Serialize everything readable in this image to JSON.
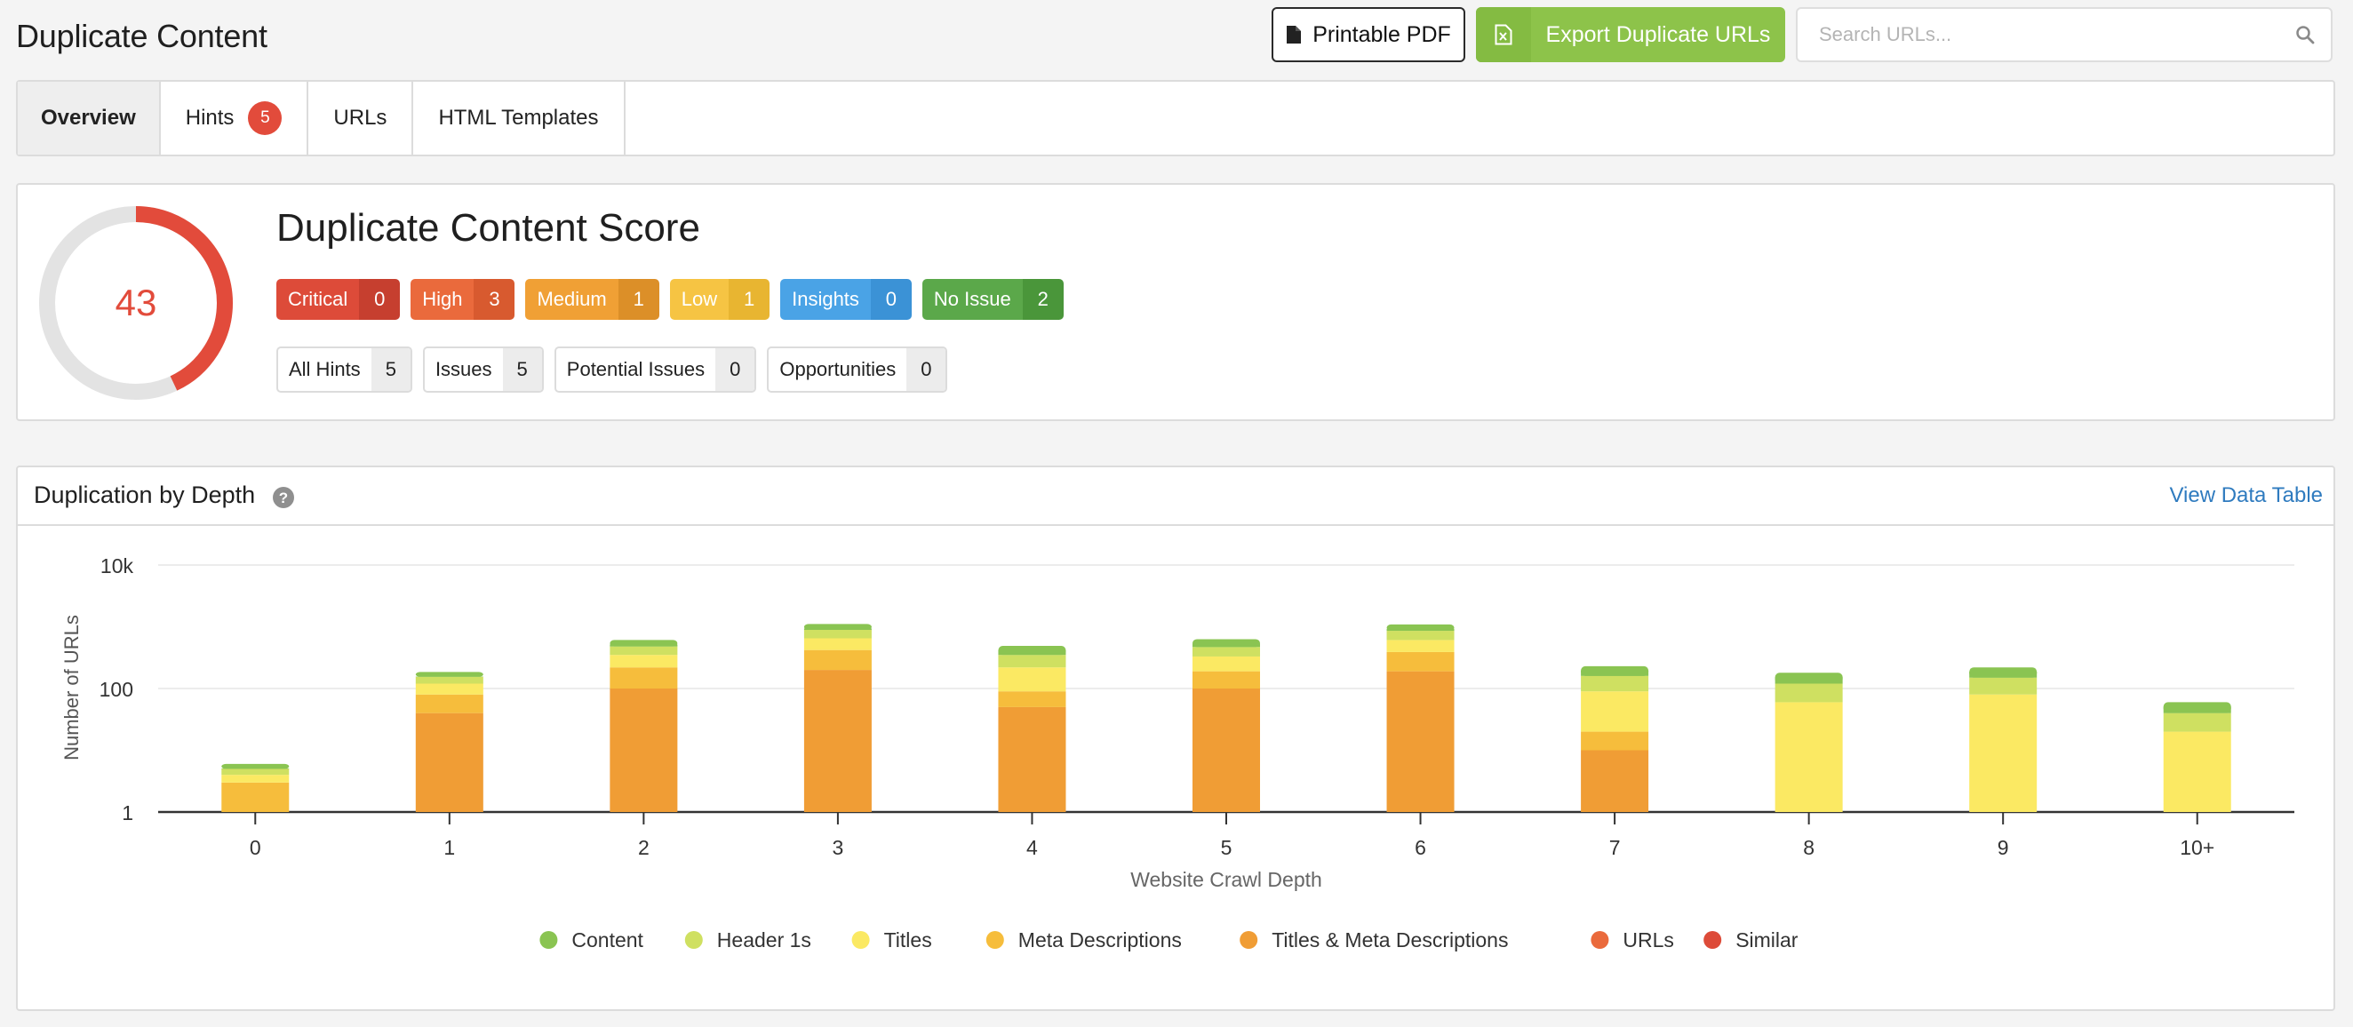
{
  "header": {
    "title": "Duplicate Content",
    "pdf_label": "Printable PDF",
    "pdf_icon": "file-icon",
    "export_label": "Export Duplicate URLs",
    "export_icon": "excel-file-icon",
    "search_placeholder": "Search URLs...",
    "search_icon": "search-icon"
  },
  "tabs": [
    {
      "label": "Overview",
      "active": true
    },
    {
      "label": "Hints",
      "badge": "5"
    },
    {
      "label": "URLs"
    },
    {
      "label": "HTML Templates"
    }
  ],
  "score": {
    "title": "Duplicate Content Score",
    "value": "43",
    "fraction": 0.43,
    "ring_color": "#e24b3b",
    "severities": [
      {
        "label": "Critical",
        "count": "0",
        "color": "#dd4b39",
        "count_color": "#c63f2f"
      },
      {
        "label": "High",
        "count": "3",
        "color": "#ea6a3c",
        "count_color": "#d85a2f"
      },
      {
        "label": "Medium",
        "count": "1",
        "color": "#f0a035",
        "count_color": "#dc8f28"
      },
      {
        "label": "Low",
        "count": "1",
        "color": "#f6c443",
        "count_color": "#e8b531"
      },
      {
        "label": "Insights",
        "count": "0",
        "color": "#4aa3e6",
        "count_color": "#3b92d6"
      },
      {
        "label": "No Issue",
        "count": "2",
        "color": "#5ba84a",
        "count_color": "#4a963a"
      }
    ],
    "hint_filters": [
      {
        "label": "All Hints",
        "count": "5"
      },
      {
        "label": "Issues",
        "count": "5"
      },
      {
        "label": "Potential Issues",
        "count": "0"
      },
      {
        "label": "Opportunities",
        "count": "0"
      }
    ]
  },
  "chart_panel": {
    "title": "Duplication by Depth",
    "help_icon": "question-circle-icon",
    "view_link": "View Data Table"
  },
  "chart_data": {
    "type": "bar",
    "stacked": true,
    "yscale": "log",
    "title": "",
    "xlabel": "Website Crawl Depth",
    "ylabel": "Number of URLs",
    "ylim": [
      1,
      10000
    ],
    "yticks": [
      "1",
      "100",
      "10k"
    ],
    "categories": [
      "0",
      "1",
      "2",
      "3",
      "4",
      "5",
      "6",
      "7",
      "8",
      "9",
      "10+"
    ],
    "grid": true,
    "legend_position": "bottom",
    "series": [
      {
        "name": "Titles & Meta Descriptions",
        "color": "#f09d35",
        "values": [
          1,
          40,
          100,
          200,
          50,
          100,
          190,
          10,
          0,
          0,
          0
        ]
      },
      {
        "name": "Meta Descriptions",
        "color": "#f6bd3c",
        "values": [
          2,
          40,
          120,
          220,
          40,
          90,
          200,
          10,
          0,
          0,
          0
        ]
      },
      {
        "name": "Titles",
        "color": "#fbe963",
        "values": [
          1,
          40,
          130,
          230,
          130,
          140,
          220,
          70,
          60,
          80,
          20
        ]
      },
      {
        "name": "Header 1s",
        "color": "#cfe061",
        "values": [
          1,
          35,
          130,
          240,
          130,
          140,
          250,
          70,
          60,
          70,
          20
        ]
      },
      {
        "name": "Content",
        "color": "#8ac452",
        "values": [
          1,
          30,
          130,
          220,
          140,
          160,
          230,
          70,
          60,
          70,
          20
        ]
      },
      {
        "name": "URLs",
        "color": "#ea6a3c",
        "values": [
          0,
          0,
          0,
          0,
          0,
          0,
          0,
          0,
          0,
          0,
          0
        ]
      },
      {
        "name": "Similar",
        "color": "#dd4b39",
        "values": [
          0,
          0,
          0,
          0,
          0,
          0,
          0,
          0,
          0,
          0,
          0
        ]
      }
    ],
    "legend": [
      {
        "name": "Content",
        "color": "#8ac452"
      },
      {
        "name": "Header 1s",
        "color": "#cfe061"
      },
      {
        "name": "Titles",
        "color": "#fbe963"
      },
      {
        "name": "Meta Descriptions",
        "color": "#f6bd3c"
      },
      {
        "name": "Titles & Meta Descriptions",
        "color": "#f09d35"
      },
      {
        "name": "URLs",
        "color": "#ea6a3c"
      },
      {
        "name": "Similar",
        "color": "#dd4b39"
      }
    ]
  }
}
